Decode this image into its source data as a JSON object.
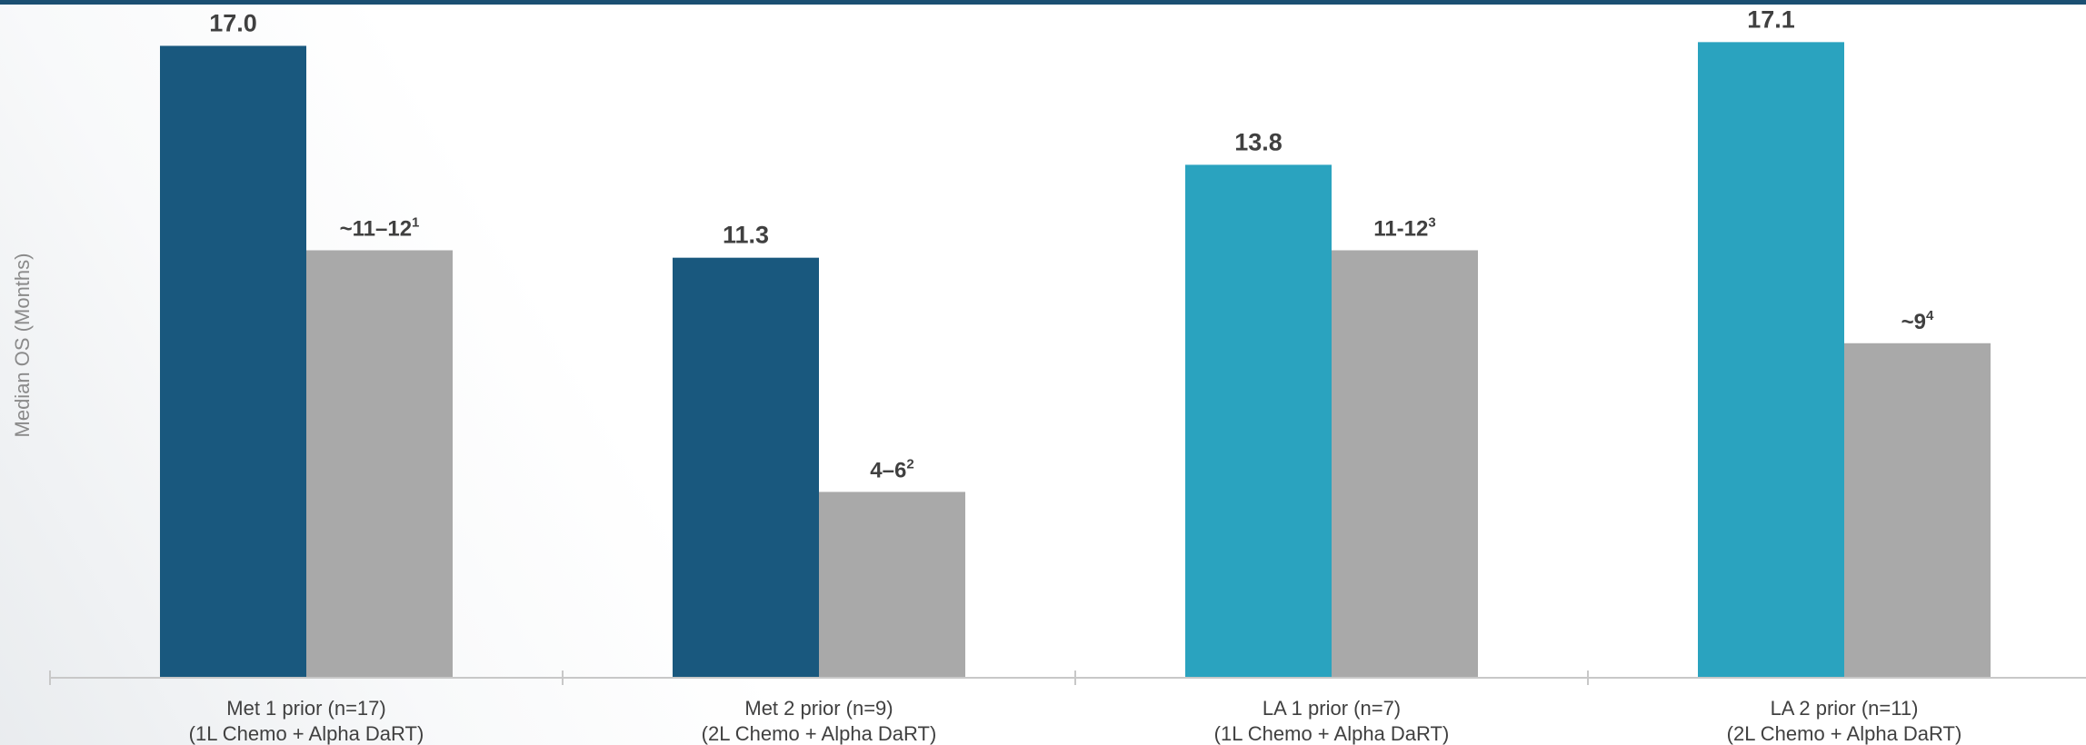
{
  "chart_data": {
    "type": "bar",
    "ylabel": "Median OS (Months)",
    "ylim": [
      0,
      17.5
    ],
    "grid": false,
    "legend": "none",
    "categories": [
      {
        "line1": "Met 1 prior (n=17)",
        "line2": "(1L Chemo + Alpha DaRT)"
      },
      {
        "line1": "Met 2 prior (n=9)",
        "line2": "(2L Chemo + Alpha DaRT)"
      },
      {
        "line1": "LA 1 prior (n=7)",
        "line2": "(1L Chemo + Alpha DaRT)"
      },
      {
        "line1": "LA 2 prior (n=11)",
        "line2": "(2L Chemo + Alpha DaRT)"
      }
    ],
    "series": [
      {
        "values": [
          17.0,
          11.3,
          13.8,
          17.1
        ],
        "labels": [
          {
            "text": "17.0",
            "sup": ""
          },
          {
            "text": "11.3",
            "sup": ""
          },
          {
            "text": "13.8",
            "sup": ""
          },
          {
            "text": "17.1",
            "sup": ""
          }
        ],
        "colors": [
          "#19587e",
          "#19587e",
          "#2aa3bf",
          "#2aa3bf"
        ]
      },
      {
        "values": [
          11.5,
          5.0,
          11.5,
          9.0
        ],
        "labels": [
          {
            "text": "~11–12",
            "sup": "1"
          },
          {
            "text": "4–6",
            "sup": "2"
          },
          {
            "text": "11-12",
            "sup": "3"
          },
          {
            "text": "~9",
            "sup": "4"
          }
        ],
        "colors": [
          "#a9a9a9",
          "#a9a9a9",
          "#a9a9a9",
          "#a9a9a9"
        ]
      }
    ]
  },
  "colors": {
    "top_bar": "#1b4f72",
    "axis": "#c8c8c8",
    "text": "#404040",
    "axis_label": "#8a8a8a"
  }
}
